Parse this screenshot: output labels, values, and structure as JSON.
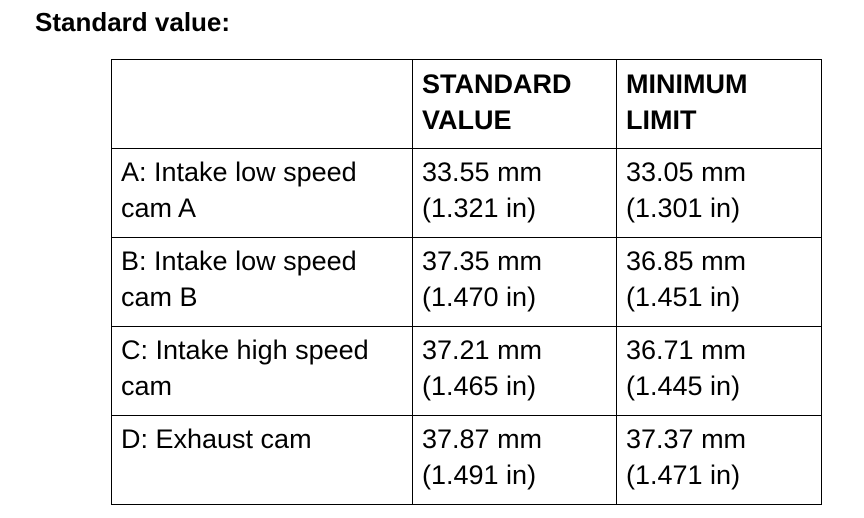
{
  "header": {
    "title": "Standard value:"
  },
  "table": {
    "columns": [
      "STANDARD VALUE",
      "MINIMUM LIMIT"
    ],
    "rows": [
      [
        "A: Intake low speed cam A",
        "33.55 mm (1.321 in)",
        "33.05 mm (1.301 in)"
      ],
      [
        "B: Intake low speed cam B",
        "37.35 mm (1.470 in)",
        "36.85 mm (1.451 in)"
      ],
      [
        "C: Intake high speed cam",
        "37.21 mm (1.465 in)",
        "36.71 mm (1.445 in)"
      ],
      [
        "D: Exhaust cam",
        "37.87 mm (1.491 in)",
        "37.37 mm (1.471 in)"
      ]
    ]
  }
}
